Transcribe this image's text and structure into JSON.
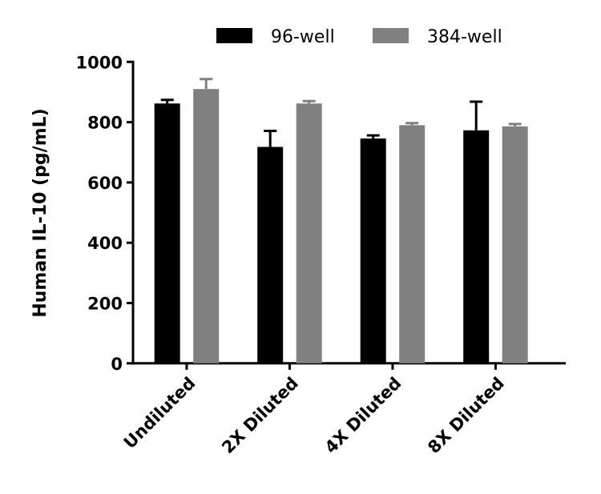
{
  "chart_data": {
    "type": "bar",
    "title": "",
    "xlabel": "",
    "ylabel": "Human IL-10 (pg/mL)",
    "ylim": [
      0,
      1000
    ],
    "yticks": [
      0,
      200,
      400,
      600,
      800,
      1000
    ],
    "grid": false,
    "legend_position": "top",
    "categories": [
      "Undiluted",
      "2X Diluted",
      "4X Diluted",
      "8X Diluted"
    ],
    "series": [
      {
        "name": "96-well",
        "color": "#000000",
        "values": [
          862,
          718,
          746,
          773
        ],
        "error_upper": [
          874,
          771,
          756,
          868
        ]
      },
      {
        "name": "384-well",
        "color": "#808080",
        "values": [
          910,
          862,
          790,
          786
        ],
        "error_upper": [
          943,
          870,
          797,
          794
        ]
      }
    ]
  }
}
